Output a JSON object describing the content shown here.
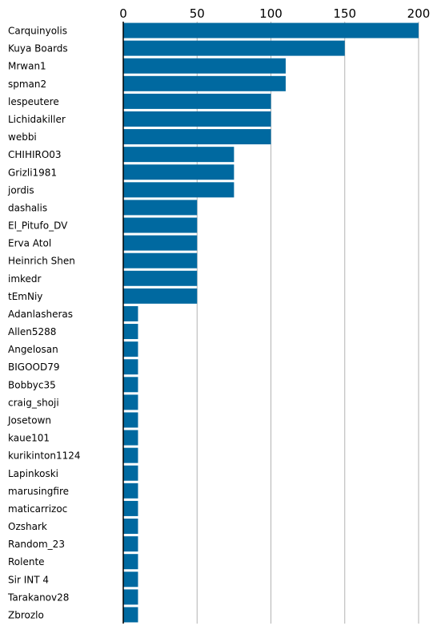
{
  "chart_data": {
    "type": "bar",
    "orientation": "horizontal",
    "xlim": [
      0,
      200
    ],
    "x_ticks": [
      "0",
      "50",
      "100",
      "150",
      "200"
    ],
    "grid": "vertical",
    "bar_color": "#0069a0",
    "categories": [
      "Carquinyolis",
      "Kuya Boards",
      "Mrwan1",
      "spman2",
      "lespeutere",
      "Lichidakiller",
      "webbi",
      "CHIHIRO03",
      "Grizli1981",
      "jordis",
      "dashalis",
      "El_Pitufo_DV",
      "Erva Atol",
      "Heinrich Shen",
      "imkedr",
      "tEmNiy",
      "Adanlasheras",
      "Allen5288",
      "Angelosan",
      "BIGOOD79",
      "Bobbyc35",
      "craig_shoji",
      "Josetown",
      "kaue101",
      "kurikinton1124",
      "Lapinkoski",
      "marusingfire",
      "maticarrizoc",
      "Ozshark",
      "Random_23",
      "Rolente",
      "Sir INT 4",
      "Tarakanov28",
      "Zbrozlo"
    ],
    "values": [
      200,
      150,
      110,
      110,
      100,
      100,
      100,
      75,
      75,
      75,
      50,
      50,
      50,
      50,
      50,
      50,
      10,
      10,
      10,
      10,
      10,
      10,
      10,
      10,
      10,
      10,
      10,
      10,
      10,
      10,
      10,
      10,
      10,
      10
    ]
  }
}
